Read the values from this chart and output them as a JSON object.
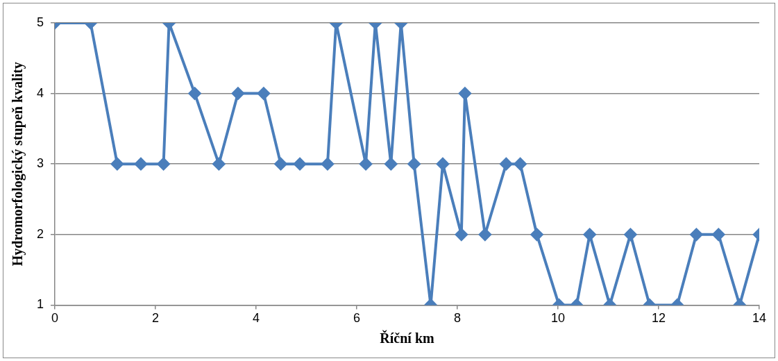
{
  "chart_data": {
    "type": "line",
    "xlabel": "Říční km",
    "ylabel": "Hydromorfologický stupeň kvality",
    "x": [
      0,
      0.71,
      1.24,
      1.71,
      2.16,
      2.27,
      2.78,
      3.26,
      3.64,
      4.15,
      4.49,
      4.87,
      5.42,
      5.59,
      6.18,
      6.37,
      6.68,
      6.88,
      7.14,
      7.47,
      7.71,
      8.08,
      8.15,
      8.55,
      8.97,
      9.25,
      9.58,
      10.02,
      10.37,
      10.63,
      11.03,
      11.44,
      11.82,
      12.37,
      12.75,
      13.19,
      13.61,
      14
    ],
    "series": [
      {
        "color": "#4a7ebb",
        "values": [
          5,
          5,
          3,
          3,
          3,
          5,
          4,
          3,
          4,
          4,
          3,
          3,
          3,
          5,
          3,
          5,
          3,
          5,
          3,
          1,
          3,
          2,
          4,
          2,
          3,
          3,
          2,
          1,
          1,
          2,
          1,
          2,
          1,
          1,
          2,
          2,
          1,
          2
        ]
      }
    ],
    "xlim": [
      0,
      14
    ],
    "xticks": [
      0,
      2,
      4,
      6,
      8,
      10,
      12,
      14
    ],
    "ylim": [
      1,
      5
    ],
    "yticks": [
      1,
      2,
      3,
      4,
      5
    ],
    "grid": "y",
    "marker": "diamond",
    "line_style": "solid"
  }
}
